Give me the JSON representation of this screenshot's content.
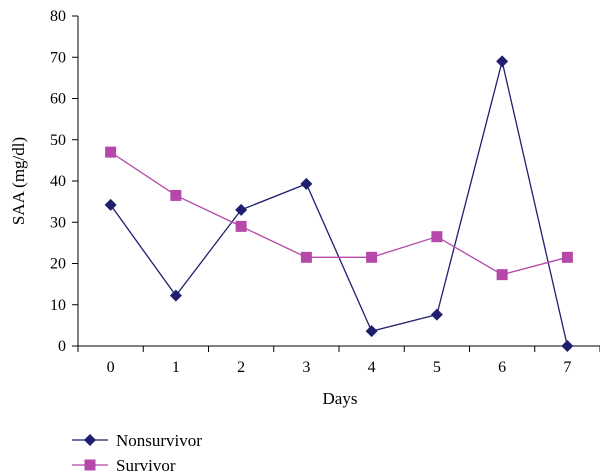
{
  "chart_data": {
    "type": "line",
    "title": "",
    "xlabel": "Days",
    "ylabel": "SAA (mg/dl)",
    "x": [
      0,
      1,
      2,
      3,
      4,
      5,
      6,
      7
    ],
    "xlim": [
      -0.5,
      7.5
    ],
    "ylim": [
      0,
      80
    ],
    "yticks": [
      0,
      10,
      20,
      30,
      40,
      50,
      60,
      70,
      80
    ],
    "grid": false,
    "legend_position": "bottom-left",
    "series": [
      {
        "name": "Nonsurvivor",
        "values": [
          34.2,
          12.2,
          33,
          39.3,
          3.6,
          7.6,
          69,
          0
        ],
        "color": "#1f1f6e",
        "marker": "diamond"
      },
      {
        "name": "Survivor",
        "values": [
          47,
          36.5,
          29,
          21.5,
          21.5,
          26.5,
          17.3,
          21.5
        ],
        "color": "#b548a8",
        "marker": "square"
      }
    ]
  }
}
